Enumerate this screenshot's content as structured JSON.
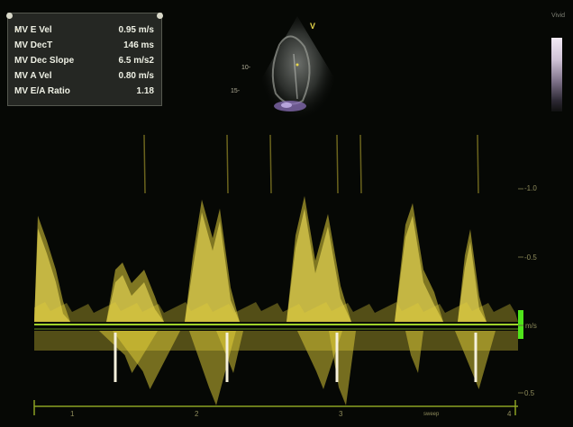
{
  "measurements": [
    {
      "label": "MV E Vel",
      "value": "0.95 m/s"
    },
    {
      "label": "MV DecT",
      "value": "146 ms"
    },
    {
      "label": "MV Dec Slope",
      "value": "6.5 m/s2"
    },
    {
      "label": "MV A Vel",
      "value": "0.80 m/s"
    },
    {
      "label": "MV E/A Ratio",
      "value": "1.18"
    }
  ],
  "velocity_scale": [
    "-1.0",
    "-0.5",
    "m/s",
    "0.5"
  ],
  "time_scale": [
    "1",
    "2",
    "3",
    "4"
  ],
  "thumbnail_label": "Vivid",
  "depth_marker": "V",
  "depth_labels": [
    "10-",
    "15-"
  ],
  "sweep_label": "sweep",
  "colors": {
    "doppler_signal": "#e4d23a",
    "baseline": "#9fd22b",
    "panel_bg": "#2a2c28",
    "scale_text": "#8f8c5c"
  }
}
